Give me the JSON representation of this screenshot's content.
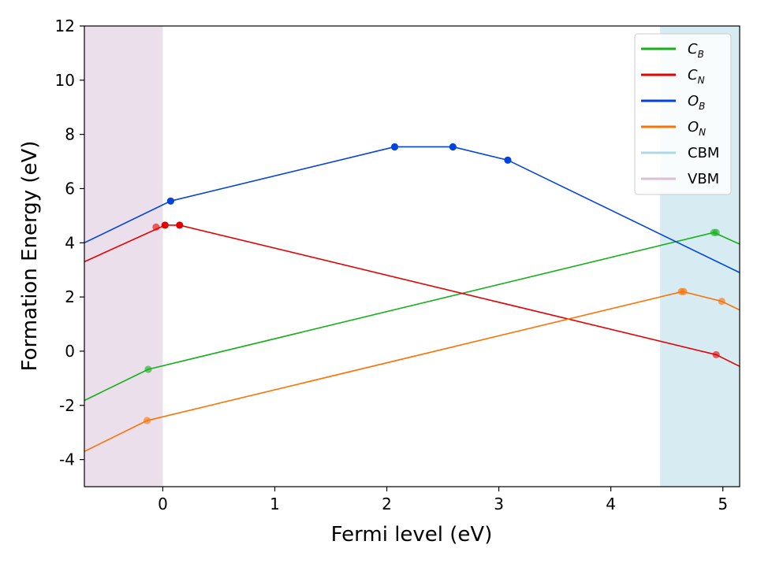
{
  "chart_data": {
    "type": "line",
    "title": "",
    "xlabel": "Fermi level (eV)",
    "ylabel": "Formation Energy (eV)",
    "xlim": [
      -0.7,
      5.15
    ],
    "ylim": [
      -5,
      12
    ],
    "xticks": [
      0,
      1,
      2,
      3,
      4,
      5
    ],
    "xtick_labels": [
      "0",
      "1",
      "2",
      "3",
      "4",
      "5"
    ],
    "yticks": [
      -4,
      -2,
      0,
      2,
      4,
      6,
      8,
      10,
      12
    ],
    "ytick_labels": [
      "-4",
      "-2",
      "0",
      "2",
      "4",
      "6",
      "8",
      "10",
      "12"
    ],
    "grid": false,
    "legend_position": "top-right",
    "regions": [
      {
        "name": "VBM",
        "x0": -0.7,
        "x1": 0.0,
        "color": "#d8bfd8"
      },
      {
        "name": "CBM",
        "x0": 4.44,
        "x1": 5.15,
        "color": "#add8e6"
      }
    ],
    "series": [
      {
        "name": "C_B",
        "base": "C",
        "sub": "B",
        "color": "#15b01a",
        "x": [
          -0.7,
          -0.13,
          4.92,
          5.15
        ],
        "y": [
          -1.82,
          -0.67,
          4.38,
          3.95
        ],
        "markers_x": [
          -0.13,
          4.92,
          4.94
        ],
        "markers_y": [
          -0.67,
          4.38,
          4.38
        ]
      },
      {
        "name": "C_N",
        "base": "C",
        "sub": "N",
        "color": "#e50000",
        "x": [
          -0.7,
          0.02,
          0.15,
          4.94,
          5.15
        ],
        "y": [
          3.3,
          4.65,
          4.65,
          -0.13,
          -0.56
        ],
        "markers_x": [
          -0.06,
          0.02,
          0.15,
          4.94
        ],
        "markers_y": [
          4.58,
          4.65,
          4.65,
          -0.13
        ]
      },
      {
        "name": "O_B",
        "base": "O",
        "sub": "B",
        "color": "#0343df",
        "x": [
          -0.7,
          0.07,
          2.07,
          2.59,
          3.08,
          5.15
        ],
        "y": [
          4.0,
          5.54,
          7.54,
          7.54,
          7.05,
          2.9
        ],
        "markers_x": [
          0.07,
          2.07,
          2.59,
          3.08
        ],
        "markers_y": [
          5.54,
          7.54,
          7.54,
          7.05
        ]
      },
      {
        "name": "O_N",
        "base": "O",
        "sub": "N",
        "color": "#f97306",
        "x": [
          -0.7,
          -0.14,
          4.64,
          4.99,
          5.15
        ],
        "y": [
          -3.7,
          -2.56,
          2.2,
          1.84,
          1.52
        ],
        "markers_x": [
          -0.14,
          4.63,
          4.65,
          4.99
        ],
        "markers_y": [
          -2.56,
          2.2,
          2.2,
          1.84
        ]
      }
    ]
  }
}
